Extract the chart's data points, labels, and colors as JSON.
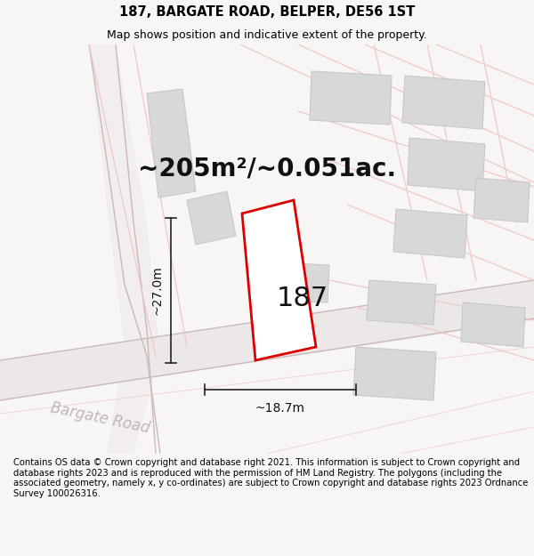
{
  "title_line1": "187, BARGATE ROAD, BELPER, DE56 1ST",
  "title_line2": "Map shows position and indicative extent of the property.",
  "footer_text": "Contains OS data © Crown copyright and database right 2021. This information is subject to Crown copyright and database rights 2023 and is reproduced with the permission of HM Land Registry. The polygons (including the associated geometry, namely x, y co-ordinates) are subject to Crown copyright and database rights 2023 Ordnance Survey 100026316.",
  "area_label": "~205m²/~0.051ac.",
  "width_label": "~18.7m",
  "height_label": "~27.0m",
  "plot_number": "187",
  "map_bg": "#ffffff",
  "building_fill": "#d8d8d8",
  "building_edge": "#c8c8c8",
  "plot_outline_color": "#dd0000",
  "road_fill": "#ede8e8",
  "road_line_color": "#d4b8b8",
  "boundary_color": "#f0c8c8",
  "road_label_color": "#c0b8b8",
  "dim_line_color": "#222222",
  "title_fontsize": 10.5,
  "subtitle_fontsize": 9.0,
  "footer_fontsize": 7.2,
  "area_fontsize": 20,
  "dim_fontsize": 10,
  "plot_num_fontsize": 22,
  "road_label_fontsize": 12
}
